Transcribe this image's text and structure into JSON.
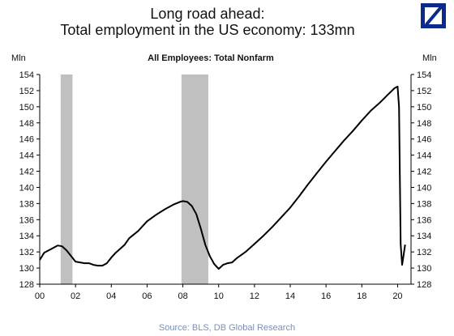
{
  "header": {
    "title_line1": "Long road ahead:",
    "title_line2": "Total employment in the US economy: 133mn"
  },
  "logo_icon": "deutsche-bank-slash-logo",
  "colors": {
    "logo": "#0a2a8c",
    "recession": "#c0c0c0",
    "line": "#000000",
    "source": "#7a8fb8"
  },
  "source": "Source: BLS, DB Global Research",
  "chart_data": {
    "type": "line",
    "title": "All Employees: Total Nonfarm",
    "ylabel_left": "Mln",
    "ylabel_right": "Mln",
    "xlabel": "",
    "xlim": [
      2000,
      2020.75
    ],
    "ylim": [
      128,
      154
    ],
    "yticks": [
      128,
      130,
      132,
      134,
      136,
      138,
      140,
      142,
      144,
      146,
      148,
      150,
      152,
      154
    ],
    "xticks": [
      {
        "value": 2000,
        "label": "00"
      },
      {
        "value": 2002,
        "label": "02"
      },
      {
        "value": 2004,
        "label": "04"
      },
      {
        "value": 2006,
        "label": "06"
      },
      {
        "value": 2008,
        "label": "08"
      },
      {
        "value": 2010,
        "label": "10"
      },
      {
        "value": 2012,
        "label": "12"
      },
      {
        "value": 2014,
        "label": "14"
      },
      {
        "value": 2016,
        "label": "16"
      },
      {
        "value": 2018,
        "label": "18"
      },
      {
        "value": 2020,
        "label": "20"
      }
    ],
    "grid": false,
    "legend": "none",
    "recessions": [
      [
        2001.17,
        2001.83
      ],
      [
        2007.92,
        2009.42
      ]
    ],
    "series": [
      {
        "x": [
          2000.0,
          2000.25,
          2000.5,
          2000.75,
          2001.0,
          2001.25,
          2001.5,
          2001.75,
          2002.0,
          2002.25,
          2002.5,
          2002.75,
          2003.0,
          2003.25,
          2003.5,
          2003.75,
          2004.0,
          2004.25,
          2004.5,
          2004.75,
          2005.0,
          2005.5,
          2006.0,
          2006.5,
          2007.0,
          2007.5,
          2007.83,
          2008.0,
          2008.25,
          2008.5,
          2008.75,
          2009.0,
          2009.25,
          2009.5,
          2009.75,
          2010.0,
          2010.25,
          2010.5,
          2010.75,
          2011.0,
          2011.5,
          2012.0,
          2012.5,
          2013.0,
          2013.5,
          2014.0,
          2014.5,
          2015.0,
          2015.5,
          2016.0,
          2016.5,
          2017.0,
          2017.5,
          2018.0,
          2018.5,
          2019.0,
          2019.5,
          2019.83,
          2020.0,
          2020.08,
          2020.17,
          2020.25,
          2020.33,
          2020.42
        ],
        "values": [
          131.0,
          131.9,
          132.2,
          132.5,
          132.8,
          132.7,
          132.2,
          131.5,
          130.8,
          130.7,
          130.6,
          130.6,
          130.4,
          130.3,
          130.3,
          130.6,
          131.3,
          131.9,
          132.4,
          132.9,
          133.7,
          134.6,
          135.8,
          136.6,
          137.3,
          137.9,
          138.2,
          138.3,
          138.2,
          137.7,
          136.7,
          134.9,
          132.9,
          131.5,
          130.5,
          129.9,
          130.4,
          130.6,
          130.7,
          131.2,
          132.0,
          133.0,
          134.0,
          135.1,
          136.3,
          137.5,
          138.9,
          140.4,
          141.8,
          143.2,
          144.5,
          145.8,
          147.0,
          148.3,
          149.5,
          150.5,
          151.6,
          152.3,
          152.5,
          150.0,
          133.0,
          130.4,
          131.5,
          132.9
        ]
      }
    ]
  }
}
